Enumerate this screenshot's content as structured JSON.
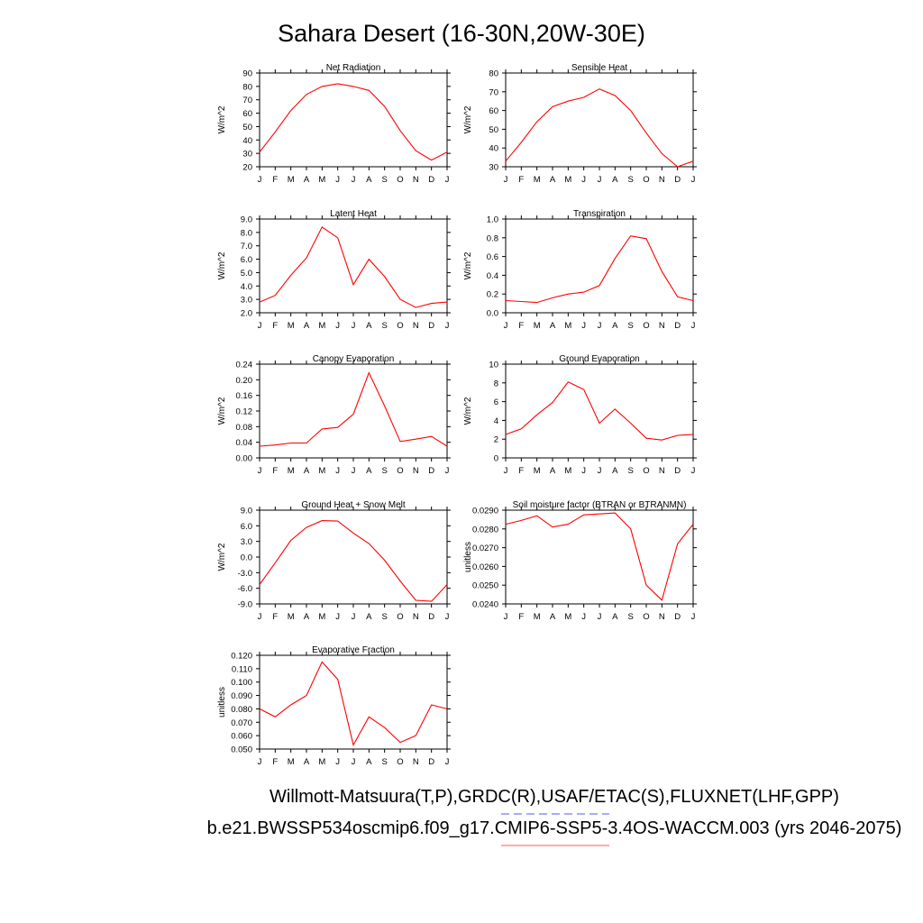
{
  "page": {
    "title": "Sahara Desert (16-30N,20W-30E)",
    "footer1": "Willmott-Matsuura(T,P),GRDC(R),USAF/ETAC(S),FLUXNET(LHF,GPP)",
    "footer2": "b.e21.BWSSP534oscmip6.f09_g17.CMIP6-SSP5-3.4OS-WACCM.003 (yrs 2046-2075)",
    "legend_line1_color": "#7777ff",
    "legend_line2_color": "#ff7777"
  },
  "chart_data": [
    {
      "type": "line",
      "title": "Net Radiation",
      "ylabel": "W/m^2",
      "categories": [
        "J",
        "F",
        "M",
        "A",
        "M",
        "J",
        "J",
        "A",
        "S",
        "O",
        "N",
        "D",
        "J"
      ],
      "ylim": [
        20,
        90
      ],
      "yticks": [
        "90",
        "80",
        "70",
        "60",
        "50",
        "40",
        "30",
        "20"
      ],
      "ytick_values": [
        90,
        80,
        70,
        60,
        50,
        40,
        30,
        20
      ],
      "values": [
        31,
        46,
        62,
        74,
        80,
        82,
        80,
        77,
        65,
        47,
        32,
        25,
        31
      ],
      "color": "#ff0000"
    },
    {
      "type": "line",
      "title": "Sensible Heat",
      "ylabel": "W/m^2",
      "categories": [
        "J",
        "F",
        "M",
        "A",
        "M",
        "J",
        "J",
        "A",
        "S",
        "O",
        "N",
        "D",
        "J"
      ],
      "ylim": [
        30,
        80
      ],
      "yticks": [
        "80",
        "70",
        "60",
        "50",
        "40",
        "30"
      ],
      "ytick_values": [
        80,
        70,
        60,
        50,
        40,
        30
      ],
      "values": [
        33,
        43,
        54,
        62,
        65,
        67,
        71.5,
        68,
        60,
        48,
        37,
        30,
        33
      ],
      "color": "#ff0000"
    },
    {
      "type": "line",
      "title": "Latent Heat",
      "ylabel": "W/m^2",
      "categories": [
        "J",
        "F",
        "M",
        "A",
        "M",
        "J",
        "J",
        "A",
        "S",
        "O",
        "N",
        "D",
        "J"
      ],
      "ylim": [
        2.0,
        9.0
      ],
      "yticks": [
        "9.0",
        "8.0",
        "7.0",
        "6.0",
        "5.0",
        "4.0",
        "3.0",
        "2.0"
      ],
      "ytick_values": [
        9,
        8,
        7,
        6,
        5,
        4,
        3,
        2
      ],
      "values": [
        2.8,
        3.3,
        4.8,
        6.1,
        8.4,
        7.6,
        4.1,
        6.0,
        4.7,
        3.0,
        2.4,
        2.7,
        2.8
      ],
      "color": "#ff0000"
    },
    {
      "type": "line",
      "title": "Transpiration",
      "ylabel": "W/m^2",
      "categories": [
        "J",
        "F",
        "M",
        "A",
        "M",
        "J",
        "J",
        "A",
        "S",
        "O",
        "N",
        "D",
        "J"
      ],
      "ylim": [
        0.0,
        1.0
      ],
      "yticks": [
        "1.0",
        "0.8",
        "0.6",
        "0.4",
        "0.2",
        "0.0"
      ],
      "ytick_values": [
        1,
        0.8,
        0.6,
        0.4,
        0.2,
        0
      ],
      "values": [
        0.13,
        0.12,
        0.11,
        0.16,
        0.2,
        0.22,
        0.29,
        0.58,
        0.82,
        0.79,
        0.44,
        0.17,
        0.13
      ],
      "color": "#ff0000"
    },
    {
      "type": "line",
      "title": "Canopy Evaporation",
      "ylabel": "W/m^2",
      "categories": [
        "J",
        "F",
        "M",
        "A",
        "M",
        "J",
        "J",
        "A",
        "S",
        "O",
        "N",
        "D",
        "J"
      ],
      "ylim": [
        0.0,
        0.24
      ],
      "yticks": [
        "0.24",
        "0.20",
        "0.16",
        "0.12",
        "0.08",
        "0.04",
        "0.00"
      ],
      "ytick_values": [
        0.24,
        0.2,
        0.16,
        0.12,
        0.08,
        0.04,
        0
      ],
      "values": [
        0.03,
        0.033,
        0.038,
        0.038,
        0.074,
        0.078,
        0.112,
        0.218,
        0.133,
        0.042,
        0.048,
        0.055,
        0.03
      ],
      "color": "#ff0000"
    },
    {
      "type": "line",
      "title": "Ground Evaporation",
      "ylabel": "W/m^2",
      "categories": [
        "J",
        "F",
        "M",
        "A",
        "M",
        "J",
        "J",
        "A",
        "S",
        "O",
        "N",
        "D",
        "J"
      ],
      "ylim": [
        0,
        10
      ],
      "yticks": [
        "10",
        "8",
        "6",
        "4",
        "2",
        "0"
      ],
      "ytick_values": [
        10,
        8,
        6,
        4,
        2,
        0
      ],
      "values": [
        2.5,
        3.1,
        4.6,
        5.9,
        8.1,
        7.3,
        3.7,
        5.2,
        3.7,
        2.1,
        1.9,
        2.4,
        2.5
      ],
      "color": "#ff0000"
    },
    {
      "type": "line",
      "title": "Ground Heat + Snow Melt",
      "ylabel": "W/m^2",
      "categories": [
        "J",
        "F",
        "M",
        "A",
        "M",
        "J",
        "J",
        "A",
        "S",
        "O",
        "N",
        "D",
        "J"
      ],
      "ylim": [
        -9.0,
        9.0
      ],
      "yticks": [
        "9.0",
        "6.0",
        "3.0",
        "0.0",
        "-3.0",
        "-6.0",
        "-9.0"
      ],
      "ytick_values": [
        9,
        6,
        3,
        0,
        -3,
        -6,
        -9
      ],
      "values": [
        -5.3,
        -1.1,
        3.2,
        5.7,
        7.0,
        6.9,
        4.6,
        2.6,
        -0.6,
        -4.6,
        -8.3,
        -8.5,
        -5.3
      ],
      "color": "#ff0000"
    },
    {
      "type": "line",
      "title": "Soil moisture factor (BTRAN or BTRANMN)",
      "ylabel": "unitless",
      "categories": [
        "J",
        "F",
        "M",
        "A",
        "M",
        "J",
        "J",
        "A",
        "S",
        "O",
        "N",
        "D",
        "J"
      ],
      "ylim": [
        0.024,
        0.029
      ],
      "yticks": [
        "0.0290",
        "0.0280",
        "0.0270",
        "0.0260",
        "0.0250",
        "0.0240"
      ],
      "ytick_values": [
        0.029,
        0.028,
        0.027,
        0.026,
        0.025,
        0.024
      ],
      "values": [
        0.02825,
        0.02845,
        0.0287,
        0.0281,
        0.02825,
        0.02875,
        0.0288,
        0.02885,
        0.028,
        0.025,
        0.0242,
        0.0272,
        0.02825
      ],
      "color": "#ff0000"
    },
    {
      "type": "line",
      "title": "Evaporative Fraction",
      "ylabel": "unitless",
      "categories": [
        "J",
        "F",
        "M",
        "A",
        "M",
        "J",
        "J",
        "A",
        "S",
        "O",
        "N",
        "D",
        "J"
      ],
      "ylim": [
        0.05,
        0.12
      ],
      "yticks": [
        "0.120",
        "0.110",
        "0.100",
        "0.090",
        "0.080",
        "0.070",
        "0.060",
        "0.050"
      ],
      "ytick_values": [
        0.12,
        0.11,
        0.1,
        0.09,
        0.08,
        0.07,
        0.06,
        0.05
      ],
      "values": [
        0.08,
        0.074,
        0.083,
        0.09,
        0.115,
        0.102,
        0.053,
        0.074,
        0.066,
        0.055,
        0.06,
        0.083,
        0.08
      ],
      "color": "#ff0000"
    }
  ]
}
